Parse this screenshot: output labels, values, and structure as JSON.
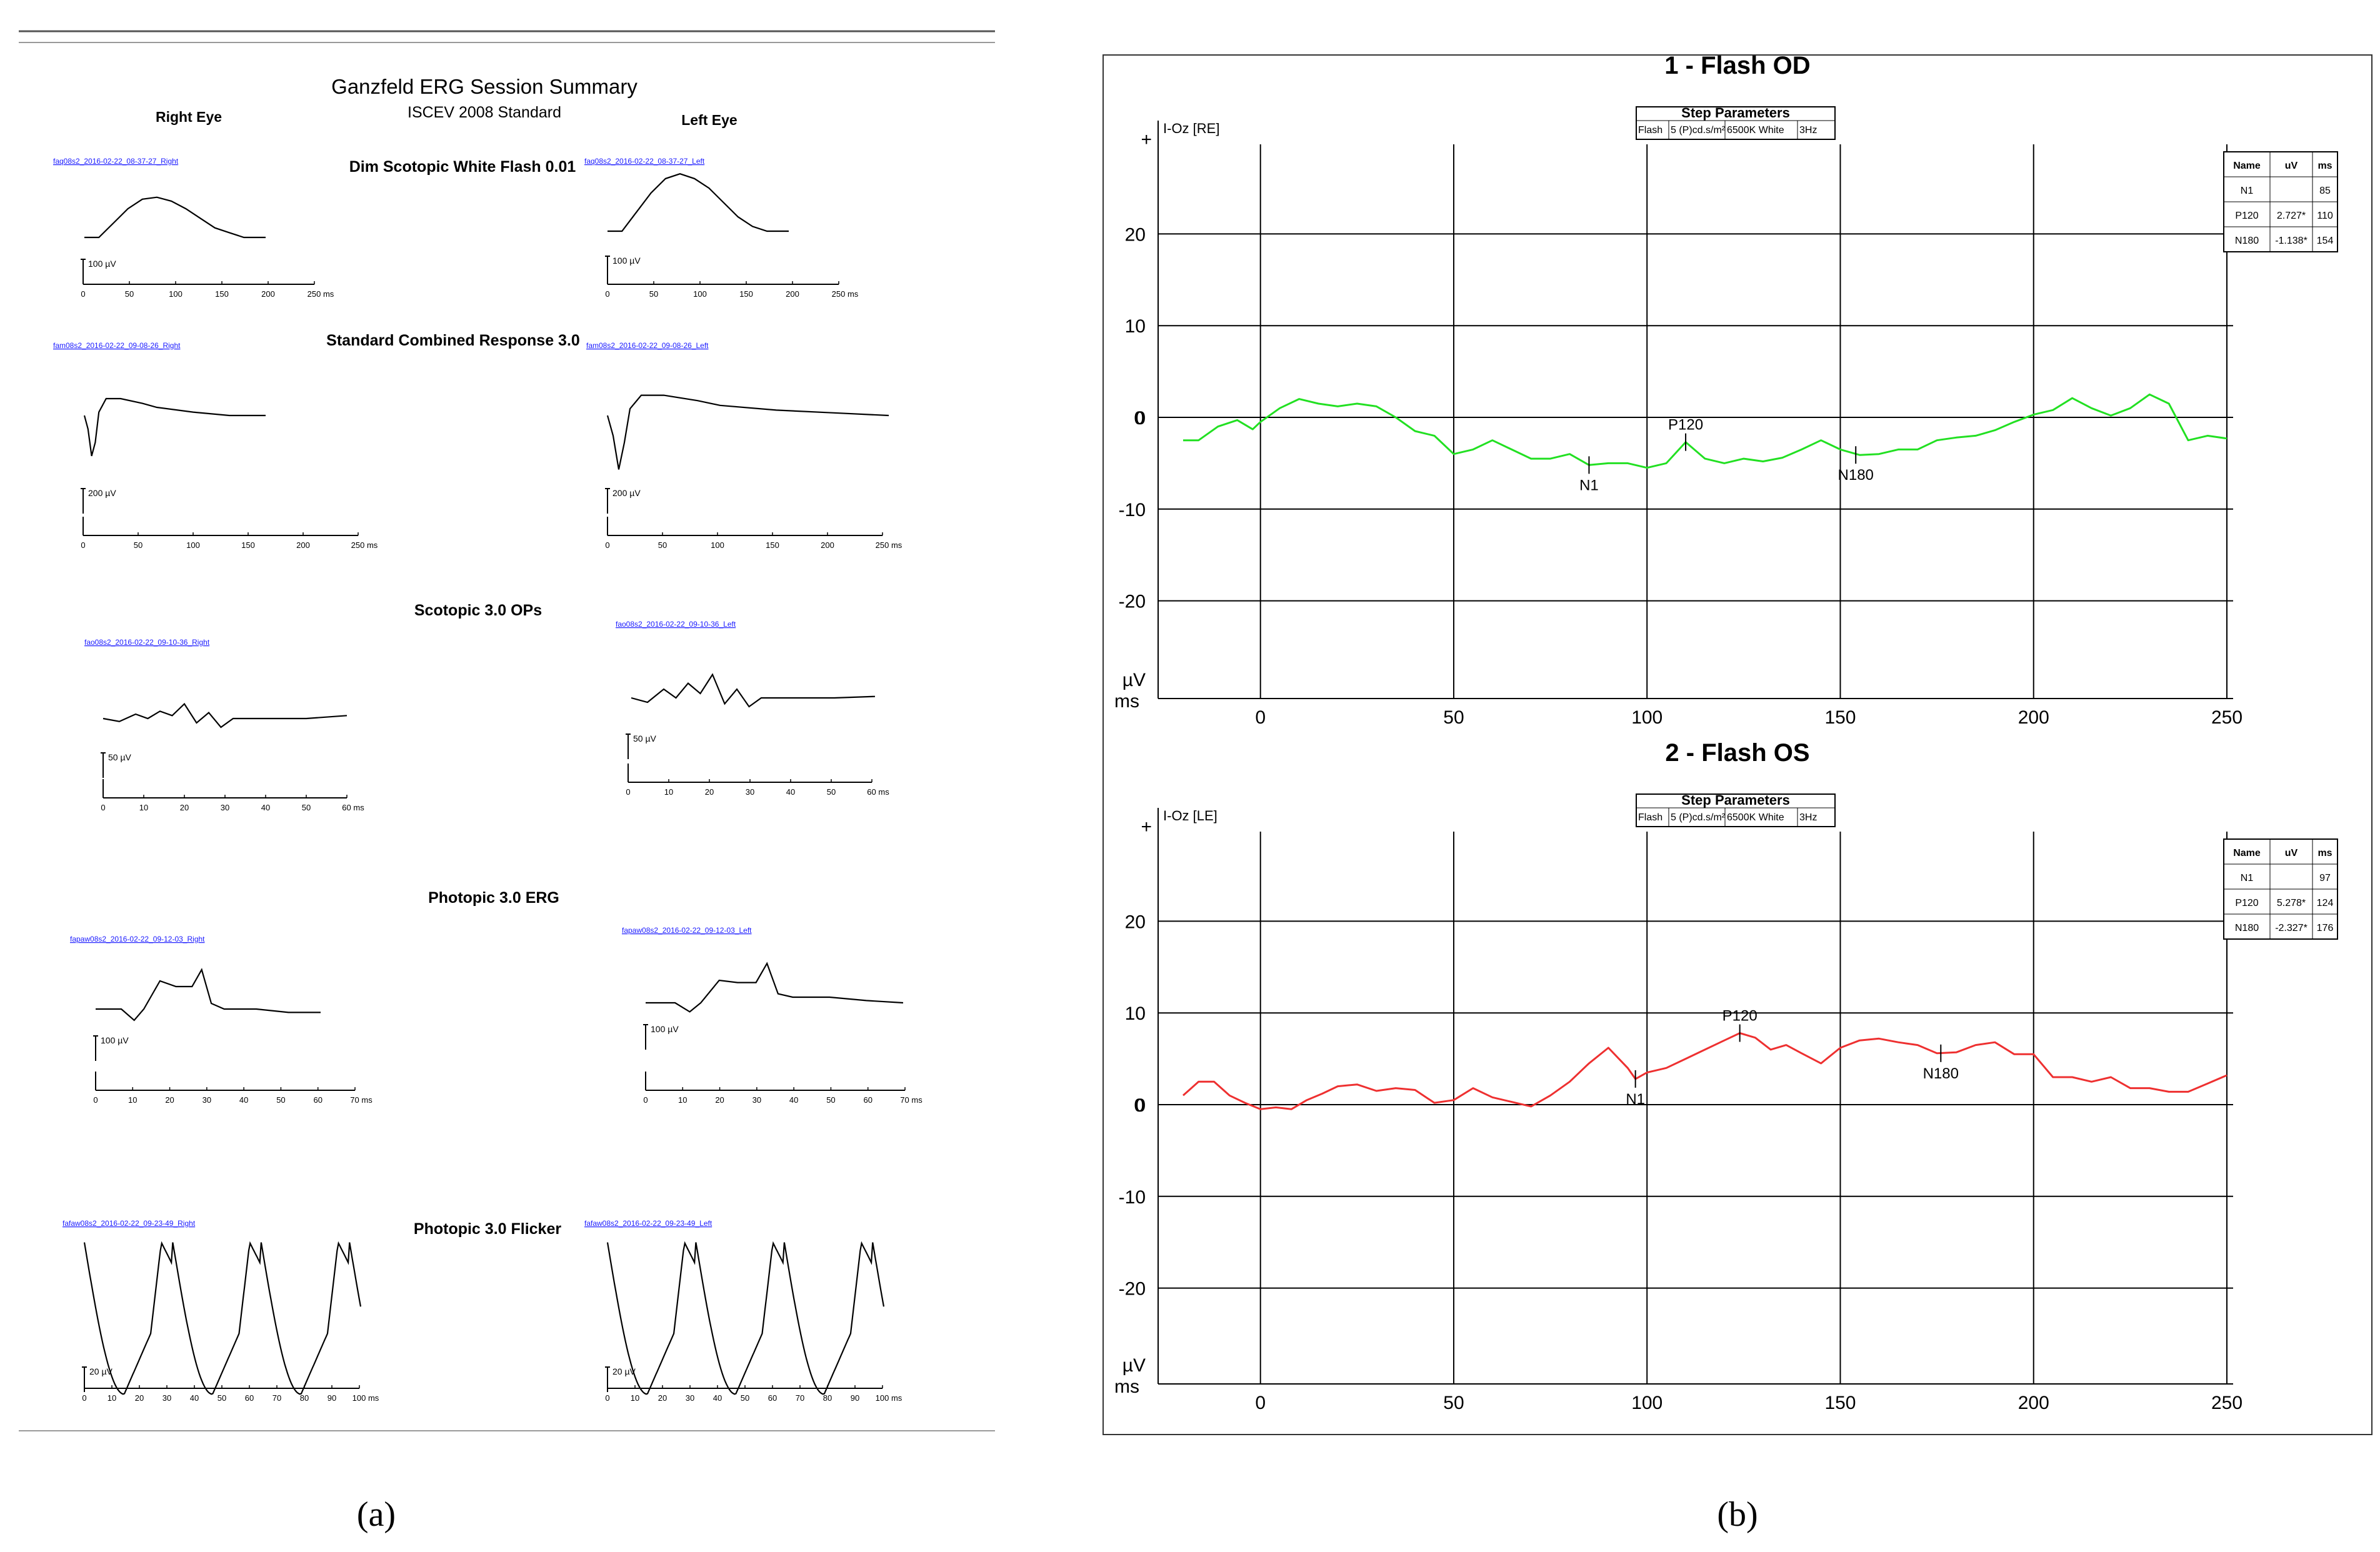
{
  "panel_a": {
    "title": "Ganzfeld ERG Session Summary",
    "subtitle": "ISCEV 2008 Standard",
    "right_eye_label": "Right Eye",
    "left_eye_label": "Left Eye",
    "caption": "(a)"
  },
  "panel_b": {
    "caption": "(b)"
  },
  "chart_data": [
    {
      "type": "line",
      "title": "Dim Scotopic White Flash 0.01",
      "scale_bar": "100 µV",
      "x_unit": "ms",
      "xticks": [
        0,
        50,
        100,
        150,
        200,
        250
      ],
      "xlim": [
        0,
        250
      ],
      "series": [
        {
          "name": "faq08s2_2016-02-22_08-37-27_Right",
          "x": [
            0,
            20,
            40,
            60,
            80,
            100,
            120,
            140,
            160,
            180,
            200,
            220,
            250
          ],
          "y": [
            0,
            0,
            15,
            30,
            40,
            42,
            38,
            30,
            20,
            10,
            5,
            0,
            0
          ]
        },
        {
          "name": "faq08s2_2016-02-22_08-37-27_Left",
          "x": [
            0,
            20,
            40,
            60,
            80,
            100,
            120,
            140,
            160,
            180,
            200,
            220,
            250
          ],
          "y": [
            0,
            0,
            20,
            40,
            55,
            60,
            55,
            45,
            30,
            15,
            5,
            0,
            0
          ]
        }
      ]
    },
    {
      "type": "line",
      "title": "Standard Combined Response 3.0",
      "scale_bar": "200 µV",
      "x_unit": "ms",
      "xticks": [
        0,
        50,
        100,
        150,
        200,
        250
      ],
      "xlim": [
        0,
        250
      ],
      "series": [
        {
          "name": "fam08s2_2016-02-22_09-08-26_Right",
          "x": [
            0,
            5,
            10,
            15,
            20,
            30,
            50,
            80,
            100,
            150,
            200,
            250
          ],
          "y": [
            0,
            -20,
            -60,
            -40,
            5,
            25,
            25,
            18,
            12,
            5,
            0,
            0
          ]
        },
        {
          "name": "fam08s2_2016-02-22_09-08-26_Left",
          "x": [
            0,
            5,
            10,
            15,
            20,
            30,
            50,
            80,
            100,
            150,
            200,
            250
          ],
          "y": [
            0,
            -30,
            -80,
            -40,
            10,
            30,
            30,
            22,
            15,
            8,
            4,
            0
          ]
        }
      ]
    },
    {
      "type": "line",
      "title": "Scotopic 3.0 OPs",
      "scale_bar": "50 µV",
      "x_unit": "ms",
      "xticks": [
        0,
        10,
        20,
        30,
        40,
        50,
        60
      ],
      "xlim": [
        0,
        60
      ],
      "series": [
        {
          "name": "fao08s2_2016-02-22_09-10-36_Right",
          "x": [
            0,
            4,
            8,
            11,
            14,
            17,
            20,
            23,
            26,
            29,
            32,
            40,
            50,
            60
          ],
          "y": [
            0,
            -2,
            3,
            0,
            5,
            2,
            10,
            -3,
            4,
            -6,
            0,
            0,
            0,
            2
          ]
        },
        {
          "name": "fao08s2_2016-02-22_09-10-36_Left",
          "x": [
            0,
            4,
            8,
            11,
            14,
            17,
            20,
            23,
            26,
            29,
            32,
            40,
            50,
            60
          ],
          "y": [
            0,
            -3,
            6,
            0,
            10,
            3,
            16,
            -4,
            6,
            -6,
            0,
            0,
            0,
            1
          ]
        }
      ]
    },
    {
      "type": "line",
      "title": "Photopic 3.0 ERG",
      "scale_bar": "100 µV",
      "x_unit": "ms",
      "xticks": [
        0,
        10,
        20,
        30,
        40,
        50,
        60,
        70
      ],
      "xlim": [
        0,
        70
      ],
      "series": [
        {
          "name": "fapaw08s2_2016-02-22_09-12-03_Right",
          "x": [
            0,
            8,
            12,
            15,
            20,
            25,
            30,
            33,
            36,
            40,
            50,
            60,
            70
          ],
          "y": [
            0,
            0,
            -10,
            0,
            25,
            20,
            20,
            35,
            5,
            0,
            0,
            -3,
            -3
          ]
        },
        {
          "name": "fapaw08s2_2016-02-22_09-12-03_Left",
          "x": [
            0,
            8,
            12,
            15,
            20,
            25,
            30,
            33,
            36,
            40,
            50,
            60,
            70
          ],
          "y": [
            0,
            0,
            -8,
            0,
            20,
            18,
            18,
            35,
            8,
            5,
            5,
            2,
            0
          ]
        }
      ]
    },
    {
      "type": "line",
      "title": "Photopic 3.0 Flicker",
      "scale_bar": "20 µV",
      "x_unit": "ms",
      "xticks": [
        0,
        10,
        20,
        30,
        40,
        50,
        60,
        70,
        80,
        90,
        100
      ],
      "xlim": [
        0,
        100
      ],
      "series": [
        {
          "name": "fafaw08s2_2016-02-22_09-23-49_Right",
          "period_ms": 32,
          "trough": -35,
          "peak": 10
        },
        {
          "name": "fafaw08s2_2016-02-22_09-23-49_Left",
          "period_ms": 32,
          "trough": -35,
          "peak": 10
        }
      ]
    },
    {
      "type": "line",
      "title": "1 - Flash OD",
      "channel": "I-Oz [RE]",
      "ylabel": "µV",
      "xlabel": "ms",
      "xlim": [
        -20,
        250
      ],
      "ylim": [
        -30,
        30
      ],
      "xticks": [
        0,
        50,
        100,
        150,
        200,
        250
      ],
      "yticks": [
        -20,
        -10,
        0,
        10,
        20
      ],
      "color": "#22e022",
      "step_parameters": {
        "header": "Step Parameters",
        "cells": [
          "Flash",
          "5 (P)cd.s/m²",
          "6500K White",
          "3Hz"
        ]
      },
      "peaks_table": {
        "headers": [
          "Name",
          "uV",
          "ms"
        ],
        "rows": [
          [
            "N1",
            "",
            "85"
          ],
          [
            "P120",
            "2.727*",
            "110"
          ],
          [
            "N180",
            "-1.138*",
            "154"
          ]
        ]
      },
      "markers": [
        {
          "label": "N1",
          "x": 85,
          "y": -5.2,
          "label_pos": "below"
        },
        {
          "label": "P120",
          "x": 110,
          "y": -2.7,
          "label_pos": "above"
        },
        {
          "label": "N180",
          "x": 154,
          "y": -4.1,
          "label_pos": "below"
        }
      ],
      "series": [
        {
          "name": "I-Oz [RE]",
          "x": [
            -20,
            -16,
            -11,
            -6,
            -2,
            0,
            5,
            10,
            15,
            20,
            25,
            30,
            35,
            40,
            45,
            50,
            55,
            60,
            65,
            70,
            75,
            80,
            85,
            90,
            95,
            100,
            105,
            110,
            115,
            120,
            125,
            130,
            135,
            140,
            145,
            150,
            155,
            160,
            165,
            170,
            175,
            180,
            185,
            190,
            195,
            200,
            205,
            210,
            215,
            220,
            225,
            230,
            235,
            240,
            245,
            250
          ],
          "y": [
            -2.5,
            -2.5,
            -1,
            -0.3,
            -1.3,
            -0.5,
            1,
            2,
            1.5,
            1.2,
            1.5,
            1.2,
            0,
            -1.5,
            -2,
            -4,
            -3.5,
            -2.5,
            -3.5,
            -4.5,
            -4.5,
            -4,
            -5.2,
            -5,
            -5,
            -5.5,
            -5,
            -2.7,
            -4.5,
            -5,
            -4.5,
            -4.8,
            -4.4,
            -3.5,
            -2.5,
            -3.5,
            -4.1,
            -4,
            -3.5,
            -3.5,
            -2.5,
            -2.2,
            -2.0,
            -1.4,
            -0.5,
            0.3,
            0.8,
            2.1,
            1,
            0.2,
            1,
            2.5,
            1.5,
            -2.5,
            -2,
            -2.3
          ]
        }
      ]
    },
    {
      "type": "line",
      "title": "2 - Flash OS",
      "channel": "I-Oz [LE]",
      "ylabel": "µV",
      "xlabel": "ms",
      "xlim": [
        -20,
        250
      ],
      "ylim": [
        -30,
        30
      ],
      "xticks": [
        0,
        50,
        100,
        150,
        200,
        250
      ],
      "yticks": [
        -20,
        -10,
        0,
        10,
        20
      ],
      "color": "#ee3030",
      "step_parameters": {
        "header": "Step Parameters",
        "cells": [
          "Flash",
          "5 (P)cd.s/m²",
          "6500K White",
          "3Hz"
        ]
      },
      "peaks_table": {
        "headers": [
          "Name",
          "uV",
          "ms"
        ],
        "rows": [
          [
            "N1",
            "",
            "97"
          ],
          [
            "P120",
            "5.278*",
            "124"
          ],
          [
            "N180",
            "-2.327*",
            "176"
          ]
        ]
      },
      "markers": [
        {
          "label": "N1",
          "x": 97,
          "y": 2.8,
          "label_pos": "below"
        },
        {
          "label": "P120",
          "x": 124,
          "y": 7.8,
          "label_pos": "above"
        },
        {
          "label": "N180",
          "x": 176,
          "y": 5.6,
          "label_pos": "below"
        }
      ],
      "series": [
        {
          "name": "I-Oz [LE]",
          "x": [
            -20,
            -16,
            -12,
            -8,
            -4,
            0,
            4,
            8,
            12,
            16,
            20,
            25,
            30,
            35,
            40,
            45,
            50,
            55,
            60,
            65,
            70,
            75,
            80,
            85,
            90,
            95,
            97,
            100,
            105,
            110,
            115,
            120,
            124,
            128,
            132,
            136,
            140,
            145,
            150,
            155,
            160,
            165,
            170,
            175,
            180,
            185,
            190,
            195,
            200,
            205,
            210,
            215,
            220,
            225,
            230,
            235,
            240,
            245,
            250
          ],
          "y": [
            1,
            2.5,
            2.5,
            1,
            0.2,
            -0.5,
            -0.3,
            -0.5,
            0.5,
            1.2,
            2,
            2.2,
            1.5,
            1.8,
            1.6,
            0.2,
            0.5,
            1.8,
            0.8,
            0.3,
            -0.2,
            1,
            2.5,
            4.5,
            6.2,
            4,
            2.8,
            3.5,
            4,
            5,
            6,
            7,
            7.8,
            7.3,
            6,
            6.5,
            5.6,
            4.5,
            6.2,
            7,
            7.2,
            6.8,
            6.5,
            5.6,
            5.7,
            6.5,
            6.8,
            5.5,
            5.5,
            3,
            3,
            2.5,
            3,
            1.8,
            1.8,
            1.4,
            1.4,
            2.3,
            3.2
          ]
        }
      ]
    }
  ]
}
